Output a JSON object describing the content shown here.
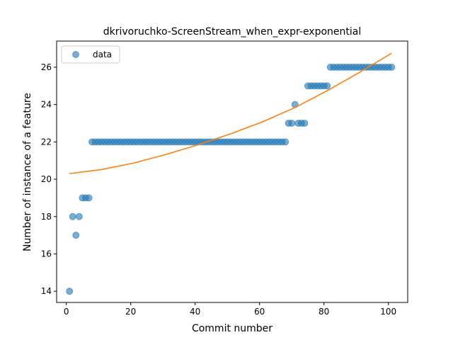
{
  "chart_data": {
    "type": "scatter",
    "title": "dkrivoruchko-ScreenStream_when_expr-exponential",
    "xlabel": "Commit number",
    "ylabel": "Number of instance of a feature",
    "xlim": [
      -3,
      106
    ],
    "ylim": [
      13.4,
      27.4
    ],
    "xticks": [
      0,
      20,
      40,
      60,
      80,
      100
    ],
    "yticks": [
      14,
      16,
      18,
      20,
      22,
      24,
      26
    ],
    "grid": false,
    "legend": {
      "placement": "top-left",
      "entries": [
        "data"
      ]
    },
    "series": [
      {
        "name": "data",
        "kind": "scatter",
        "color": "#1f77b4",
        "points": [
          [
            1,
            14
          ],
          [
            2,
            18
          ],
          [
            3,
            17
          ],
          [
            4,
            18
          ],
          [
            5,
            19
          ],
          [
            6,
            19
          ],
          [
            7,
            19
          ],
          [
            8,
            22
          ],
          [
            9,
            22
          ],
          [
            10,
            22
          ],
          [
            11,
            22
          ],
          [
            12,
            22
          ],
          [
            13,
            22
          ],
          [
            14,
            22
          ],
          [
            15,
            22
          ],
          [
            16,
            22
          ],
          [
            17,
            22
          ],
          [
            18,
            22
          ],
          [
            19,
            22
          ],
          [
            20,
            22
          ],
          [
            21,
            22
          ],
          [
            22,
            22
          ],
          [
            23,
            22
          ],
          [
            24,
            22
          ],
          [
            25,
            22
          ],
          [
            26,
            22
          ],
          [
            27,
            22
          ],
          [
            28,
            22
          ],
          [
            29,
            22
          ],
          [
            30,
            22
          ],
          [
            31,
            22
          ],
          [
            32,
            22
          ],
          [
            33,
            22
          ],
          [
            34,
            22
          ],
          [
            35,
            22
          ],
          [
            36,
            22
          ],
          [
            37,
            22
          ],
          [
            38,
            22
          ],
          [
            39,
            22
          ],
          [
            40,
            22
          ],
          [
            41,
            22
          ],
          [
            42,
            22
          ],
          [
            43,
            22
          ],
          [
            44,
            22
          ],
          [
            45,
            22
          ],
          [
            46,
            22
          ],
          [
            47,
            22
          ],
          [
            48,
            22
          ],
          [
            49,
            22
          ],
          [
            50,
            22
          ],
          [
            51,
            22
          ],
          [
            52,
            22
          ],
          [
            53,
            22
          ],
          [
            54,
            22
          ],
          [
            55,
            22
          ],
          [
            56,
            22
          ],
          [
            57,
            22
          ],
          [
            58,
            22
          ],
          [
            59,
            22
          ],
          [
            60,
            22
          ],
          [
            61,
            22
          ],
          [
            62,
            22
          ],
          [
            63,
            22
          ],
          [
            64,
            22
          ],
          [
            65,
            22
          ],
          [
            66,
            22
          ],
          [
            67,
            22
          ],
          [
            68,
            22
          ],
          [
            69,
            23
          ],
          [
            70,
            23
          ],
          [
            71,
            24
          ],
          [
            72,
            23
          ],
          [
            73,
            23
          ],
          [
            74,
            23
          ],
          [
            75,
            25
          ],
          [
            76,
            25
          ],
          [
            77,
            25
          ],
          [
            78,
            25
          ],
          [
            79,
            25
          ],
          [
            80,
            25
          ],
          [
            81,
            25
          ],
          [
            82,
            26
          ],
          [
            83,
            26
          ],
          [
            84,
            26
          ],
          [
            85,
            26
          ],
          [
            86,
            26
          ],
          [
            87,
            26
          ],
          [
            88,
            26
          ],
          [
            89,
            26
          ],
          [
            90,
            26
          ],
          [
            91,
            26
          ],
          [
            92,
            26
          ],
          [
            93,
            26
          ],
          [
            94,
            26
          ],
          [
            95,
            26
          ],
          [
            96,
            26
          ],
          [
            97,
            26
          ],
          [
            98,
            26
          ],
          [
            99,
            26
          ],
          [
            100,
            26
          ],
          [
            101,
            26
          ]
        ]
      },
      {
        "kind": "line",
        "color": "#ff7f0e",
        "points": [
          [
            1,
            20.3
          ],
          [
            11,
            20.52
          ],
          [
            21,
            20.87
          ],
          [
            31,
            21.33
          ],
          [
            41,
            21.85
          ],
          [
            51,
            22.43
          ],
          [
            61,
            23.08
          ],
          [
            71,
            23.84
          ],
          [
            81,
            24.74
          ],
          [
            91,
            25.72
          ],
          [
            101,
            26.75
          ]
        ]
      }
    ]
  }
}
